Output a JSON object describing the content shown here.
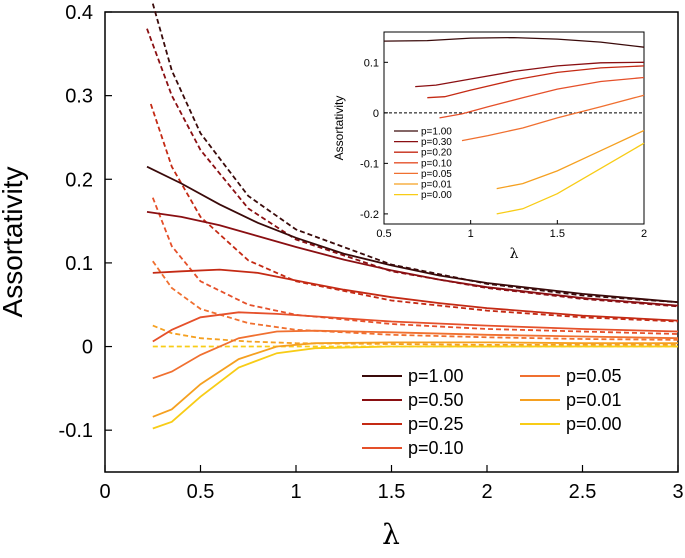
{
  "chart_data": [
    {
      "type": "line",
      "ylabel": "Assortativity",
      "xlabel": "λ",
      "xlim": [
        0,
        3
      ],
      "ylim": [
        -0.15,
        0.4
      ],
      "xticks": [
        "0",
        "0.5",
        "1",
        "1.5",
        "2",
        "2.5",
        "3"
      ],
      "yticks": [
        "-0.1",
        "0",
        "0.1",
        "0.2",
        "0.3",
        "0.4"
      ],
      "legend": [
        "p=1.00",
        "p=0.50",
        "p=0.25",
        "p=0.10",
        "p=0.05",
        "p=0.01",
        "p=0.00"
      ],
      "colors": [
        "#3a0a0a",
        "#8a0f12",
        "#c42a14",
        "#e5502a",
        "#f07030",
        "#f5a020",
        "#f8cc16"
      ],
      "series_solid": [
        {
          "name": "p=1.00",
          "x": [
            0.22,
            0.4,
            0.6,
            0.8,
            1.0,
            1.25,
            1.5,
            1.75,
            2.0,
            2.5,
            3.0
          ],
          "y": [
            0.215,
            0.195,
            0.17,
            0.148,
            0.13,
            0.111,
            0.097,
            0.085,
            0.076,
            0.063,
            0.053
          ]
        },
        {
          "name": "p=0.50",
          "x": [
            0.22,
            0.4,
            0.6,
            0.8,
            1.0,
            1.25,
            1.5,
            1.75,
            2.0,
            2.5,
            3.0
          ],
          "y": [
            0.161,
            0.155,
            0.145,
            0.132,
            0.119,
            0.104,
            0.091,
            0.08,
            0.071,
            0.058,
            0.049
          ]
        },
        {
          "name": "p=0.25",
          "x": [
            0.25,
            0.4,
            0.6,
            0.8,
            1.0,
            1.25,
            1.5,
            1.75,
            2.0,
            2.5,
            3.0
          ],
          "y": [
            0.088,
            0.09,
            0.092,
            0.088,
            0.079,
            0.068,
            0.059,
            0.052,
            0.046,
            0.037,
            0.031
          ]
        },
        {
          "name": "p=0.10",
          "x": [
            0.25,
            0.35,
            0.5,
            0.7,
            0.9,
            1.1,
            1.5,
            2.0,
            2.5,
            3.0
          ],
          "y": [
            0.006,
            0.02,
            0.035,
            0.041,
            0.039,
            0.036,
            0.03,
            0.025,
            0.021,
            0.018
          ]
        },
        {
          "name": "p=0.05",
          "x": [
            0.25,
            0.35,
            0.5,
            0.7,
            0.9,
            1.1,
            1.5,
            2.0,
            2.5,
            3.0
          ],
          "y": [
            -0.038,
            -0.03,
            -0.01,
            0.01,
            0.018,
            0.019,
            0.017,
            0.014,
            0.012,
            0.01
          ]
        },
        {
          "name": "p=0.01",
          "x": [
            0.25,
            0.35,
            0.5,
            0.7,
            0.9,
            1.1,
            1.5,
            2.0,
            2.5,
            3.0
          ],
          "y": [
            -0.084,
            -0.075,
            -0.045,
            -0.015,
            0.0,
            0.004,
            0.005,
            0.005,
            0.004,
            0.004
          ]
        },
        {
          "name": "p=0.00",
          "x": [
            0.25,
            0.35,
            0.5,
            0.7,
            0.9,
            1.1,
            1.5,
            2.0,
            2.5,
            3.0
          ],
          "y": [
            -0.098,
            -0.09,
            -0.06,
            -0.025,
            -0.008,
            -0.002,
            0.0,
            0.0,
            0.0,
            0.0
          ]
        }
      ],
      "series_dashed": [
        {
          "name": "p=1.00",
          "x": [
            0.25,
            0.35,
            0.5,
            0.75,
            1.0,
            1.5,
            2.0,
            2.5,
            3.0
          ],
          "y": [
            0.41,
            0.33,
            0.255,
            0.18,
            0.14,
            0.098,
            0.075,
            0.061,
            0.053
          ]
        },
        {
          "name": "p=0.50",
          "x": [
            0.22,
            0.35,
            0.5,
            0.75,
            1.0,
            1.5,
            2.0,
            2.5,
            3.0
          ],
          "y": [
            0.38,
            0.3,
            0.235,
            0.165,
            0.128,
            0.09,
            0.07,
            0.057,
            0.048
          ]
        },
        {
          "name": "p=0.25",
          "x": [
            0.24,
            0.35,
            0.5,
            0.75,
            1.0,
            1.5,
            2.0,
            2.5,
            3.0
          ],
          "y": [
            0.29,
            0.215,
            0.155,
            0.103,
            0.078,
            0.055,
            0.043,
            0.035,
            0.03
          ]
        },
        {
          "name": "p=0.10",
          "x": [
            0.25,
            0.35,
            0.5,
            0.75,
            1.0,
            1.5,
            2.0,
            2.5,
            3.0
          ],
          "y": [
            0.178,
            0.12,
            0.078,
            0.05,
            0.038,
            0.027,
            0.021,
            0.018,
            0.015
          ]
        },
        {
          "name": "p=0.05",
          "x": [
            0.25,
            0.35,
            0.5,
            0.75,
            1.0,
            1.5,
            2.0,
            2.5,
            3.0
          ],
          "y": [
            0.102,
            0.07,
            0.045,
            0.028,
            0.02,
            0.014,
            0.011,
            0.009,
            0.008
          ]
        },
        {
          "name": "p=0.01",
          "x": [
            0.25,
            0.35,
            0.5,
            0.75,
            1.0,
            1.5,
            2.0,
            2.5,
            3.0
          ],
          "y": [
            0.025,
            0.016,
            0.01,
            0.006,
            0.004,
            0.003,
            0.002,
            0.002,
            0.002
          ]
        },
        {
          "name": "p=0.00",
          "x": [
            0.25,
            3.0
          ],
          "y": [
            0.0,
            0.0
          ]
        }
      ]
    },
    {
      "type": "line",
      "inset": true,
      "ylabel": "Assortativity",
      "xlabel": "λ",
      "xlim": [
        0.5,
        2
      ],
      "ylim": [
        -0.22,
        0.16
      ],
      "xticks": [
        "0.5",
        "1",
        "1.5",
        "2"
      ],
      "yticks": [
        "-0.2",
        "-0.1",
        "0",
        "0.1"
      ],
      "legend": [
        "p=1.00",
        "p=0.30",
        "p=0.20",
        "p=0.10",
        "p=0.05",
        "p=0.01",
        "p=0.00"
      ],
      "colors": [
        "#3a0a0a",
        "#8a0f12",
        "#c42a14",
        "#e5502a",
        "#f07030",
        "#f5a020",
        "#f8cc16"
      ],
      "reference_line": 0,
      "series": [
        {
          "name": "p=1.00",
          "x": [
            0.5,
            0.75,
            1.0,
            1.25,
            1.5,
            1.75,
            2.0
          ],
          "y": [
            0.142,
            0.143,
            0.148,
            0.149,
            0.146,
            0.14,
            0.13
          ]
        },
        {
          "name": "p=0.30",
          "x": [
            0.68,
            0.8,
            1.0,
            1.25,
            1.5,
            1.75,
            2.0
          ],
          "y": [
            0.052,
            0.055,
            0.067,
            0.082,
            0.093,
            0.099,
            0.1
          ]
        },
        {
          "name": "p=0.20",
          "x": [
            0.75,
            0.85,
            1.0,
            1.25,
            1.5,
            1.75,
            2.0
          ],
          "y": [
            0.03,
            0.032,
            0.045,
            0.065,
            0.08,
            0.089,
            0.093
          ]
        },
        {
          "name": "p=0.10",
          "x": [
            0.82,
            0.95,
            1.1,
            1.3,
            1.5,
            1.75,
            2.0
          ],
          "y": [
            -0.01,
            -0.002,
            0.012,
            0.03,
            0.047,
            0.062,
            0.07
          ]
        },
        {
          "name": "p=0.05",
          "x": [
            0.95,
            1.1,
            1.3,
            1.5,
            1.75,
            2.0
          ],
          "y": [
            -0.055,
            -0.045,
            -0.03,
            -0.01,
            0.012,
            0.035
          ]
        },
        {
          "name": "p=0.01",
          "x": [
            1.15,
            1.3,
            1.5,
            1.75,
            2.0
          ],
          "y": [
            -0.15,
            -0.14,
            -0.115,
            -0.075,
            -0.035
          ]
        },
        {
          "name": "p=0.00",
          "x": [
            1.15,
            1.3,
            1.5,
            1.75,
            2.0
          ],
          "y": [
            -0.2,
            -0.19,
            -0.16,
            -0.11,
            -0.06
          ]
        }
      ]
    }
  ]
}
